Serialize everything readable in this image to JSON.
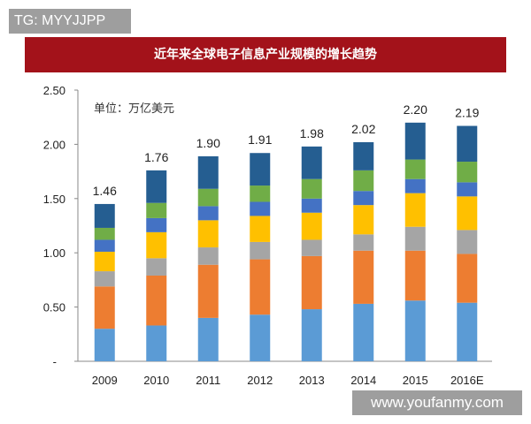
{
  "watermark_top": "TG: MYYJJPP",
  "watermark_bottom": "www.youfanmy.com",
  "chart_data": {
    "type": "bar",
    "stacked": true,
    "title": "近年来全球电子信息产业规模的增长趋势",
    "unit_label": "单位：万亿美元",
    "categories": [
      "2009",
      "2010",
      "2011",
      "2012",
      "2013",
      "2014",
      "2015",
      "2016E"
    ],
    "totals": [
      "1.46",
      "1.76",
      "1.90",
      "1.91",
      "1.98",
      "2.02",
      "2.20",
      "2.19"
    ],
    "ylim": [
      0,
      2.5
    ],
    "yticks": [
      "-",
      "0.50",
      "1.00",
      "1.50",
      "2.00",
      "2.50"
    ],
    "grid": false,
    "legend": "none",
    "series": [
      {
        "color": "#5b9bd5",
        "values": [
          0.3,
          0.33,
          0.4,
          0.43,
          0.48,
          0.53,
          0.56,
          0.54
        ]
      },
      {
        "color": "#ed7d31",
        "values": [
          0.39,
          0.46,
          0.49,
          0.51,
          0.49,
          0.49,
          0.46,
          0.45
        ]
      },
      {
        "color": "#a5a5a5",
        "values": [
          0.14,
          0.16,
          0.16,
          0.16,
          0.15,
          0.15,
          0.22,
          0.22
        ]
      },
      {
        "color": "#ffc000",
        "values": [
          0.18,
          0.24,
          0.25,
          0.24,
          0.25,
          0.27,
          0.31,
          0.31
        ]
      },
      {
        "color": "#4472c4",
        "values": [
          0.11,
          0.13,
          0.13,
          0.13,
          0.13,
          0.13,
          0.13,
          0.13
        ]
      },
      {
        "color": "#70ad47",
        "values": [
          0.11,
          0.14,
          0.16,
          0.15,
          0.18,
          0.19,
          0.18,
          0.19
        ]
      },
      {
        "color": "#255e91",
        "values": [
          0.22,
          0.3,
          0.3,
          0.3,
          0.3,
          0.26,
          0.34,
          0.33
        ]
      }
    ]
  }
}
